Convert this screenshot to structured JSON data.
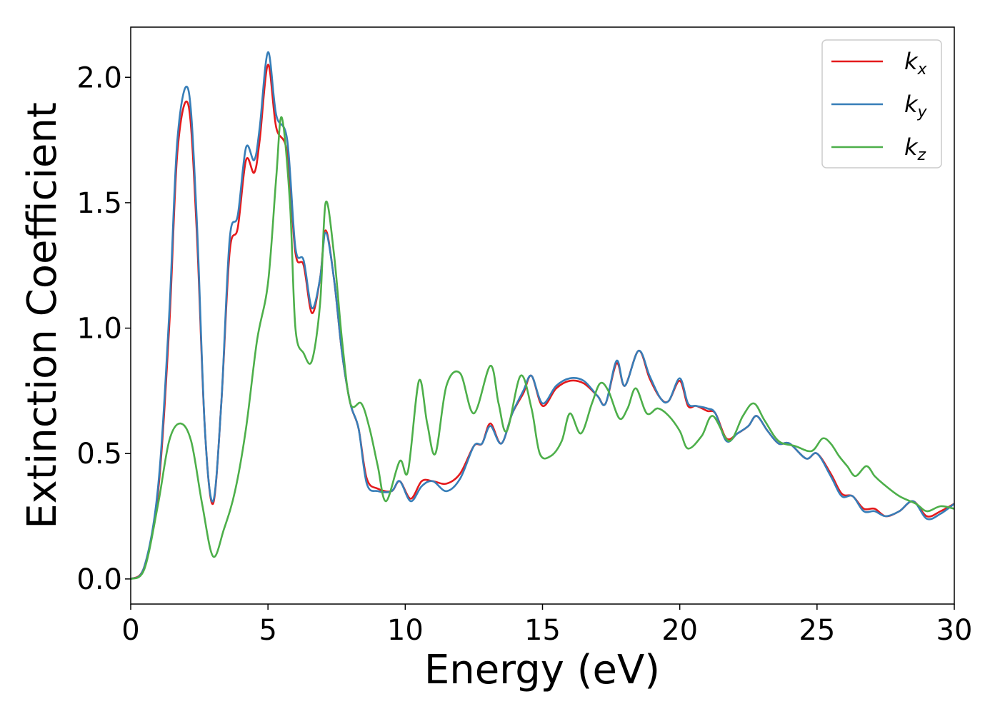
{
  "chart_data": {
    "type": "line",
    "xlabel": "Energy (eV)",
    "ylabel": "Extinction Coefficient",
    "xlim": [
      0,
      30
    ],
    "ylim": [
      -0.1,
      2.2
    ],
    "xticks": [
      0,
      5,
      10,
      15,
      20,
      25,
      30
    ],
    "xtick_labels": [
      "0",
      "5",
      "10",
      "15",
      "20",
      "25",
      "30"
    ],
    "yticks": [
      0.0,
      0.5,
      1.0,
      1.5,
      2.0
    ],
    "ytick_labels": [
      "0.0",
      "0.5",
      "1.0",
      "1.5",
      "2.0"
    ],
    "grid": false,
    "legend_position": "top-right",
    "series": [
      {
        "name": "k",
        "subscript": "x",
        "color": "#e41a1c",
        "points": [
          [
            0,
            0
          ],
          [
            0.5,
            0.05
          ],
          [
            1,
            0.35
          ],
          [
            1.4,
            1.0
          ],
          [
            1.7,
            1.7
          ],
          [
            2.1,
            1.89
          ],
          [
            2.4,
            1.4
          ],
          [
            2.7,
            0.6
          ],
          [
            3.0,
            0.3
          ],
          [
            3.3,
            0.7
          ],
          [
            3.6,
            1.3
          ],
          [
            3.9,
            1.4
          ],
          [
            4.2,
            1.67
          ],
          [
            4.5,
            1.62
          ],
          [
            4.7,
            1.75
          ],
          [
            5.0,
            2.05
          ],
          [
            5.3,
            1.8
          ],
          [
            5.7,
            1.7
          ],
          [
            6.0,
            1.3
          ],
          [
            6.3,
            1.25
          ],
          [
            6.6,
            1.06
          ],
          [
            6.9,
            1.2
          ],
          [
            7.1,
            1.39
          ],
          [
            7.4,
            1.2
          ],
          [
            7.7,
            0.9
          ],
          [
            8.0,
            0.7
          ],
          [
            8.3,
            0.6
          ],
          [
            8.6,
            0.4
          ],
          [
            9.0,
            0.36
          ],
          [
            9.5,
            0.35
          ],
          [
            9.8,
            0.39
          ],
          [
            10.2,
            0.32
          ],
          [
            10.6,
            0.39
          ],
          [
            11.0,
            0.39
          ],
          [
            11.5,
            0.38
          ],
          [
            12.0,
            0.42
          ],
          [
            12.5,
            0.53
          ],
          [
            12.8,
            0.54
          ],
          [
            13.1,
            0.62
          ],
          [
            13.5,
            0.54
          ],
          [
            13.9,
            0.66
          ],
          [
            14.3,
            0.74
          ],
          [
            14.6,
            0.81
          ],
          [
            15.0,
            0.69
          ],
          [
            15.5,
            0.76
          ],
          [
            16.0,
            0.79
          ],
          [
            16.5,
            0.78
          ],
          [
            17.0,
            0.73
          ],
          [
            17.3,
            0.7
          ],
          [
            17.7,
            0.86
          ],
          [
            18.0,
            0.77
          ],
          [
            18.5,
            0.91
          ],
          [
            18.9,
            0.8
          ],
          [
            19.3,
            0.72
          ],
          [
            19.6,
            0.71
          ],
          [
            20.0,
            0.79
          ],
          [
            20.3,
            0.69
          ],
          [
            20.6,
            0.69
          ],
          [
            21.0,
            0.67
          ],
          [
            21.3,
            0.66
          ],
          [
            21.7,
            0.56
          ],
          [
            22.1,
            0.58
          ],
          [
            22.5,
            0.61
          ],
          [
            22.8,
            0.65
          ],
          [
            23.2,
            0.59
          ],
          [
            23.6,
            0.54
          ],
          [
            24.0,
            0.54
          ],
          [
            24.6,
            0.48
          ],
          [
            25.0,
            0.5
          ],
          [
            25.5,
            0.42
          ],
          [
            25.9,
            0.34
          ],
          [
            26.3,
            0.33
          ],
          [
            26.7,
            0.28
          ],
          [
            27.1,
            0.28
          ],
          [
            27.5,
            0.25
          ],
          [
            28.0,
            0.27
          ],
          [
            28.5,
            0.31
          ],
          [
            29.0,
            0.25
          ],
          [
            29.5,
            0.27
          ],
          [
            30.0,
            0.3
          ]
        ]
      },
      {
        "name": "k",
        "subscript": "y",
        "color": "#377eb8",
        "points": [
          [
            0,
            0
          ],
          [
            0.5,
            0.05
          ],
          [
            1,
            0.37
          ],
          [
            1.4,
            1.05
          ],
          [
            1.7,
            1.75
          ],
          [
            2.1,
            1.95
          ],
          [
            2.4,
            1.45
          ],
          [
            2.7,
            0.6
          ],
          [
            3.0,
            0.31
          ],
          [
            3.3,
            0.7
          ],
          [
            3.6,
            1.35
          ],
          [
            3.9,
            1.45
          ],
          [
            4.2,
            1.72
          ],
          [
            4.5,
            1.67
          ],
          [
            4.7,
            1.8
          ],
          [
            5.0,
            2.1
          ],
          [
            5.3,
            1.85
          ],
          [
            5.7,
            1.75
          ],
          [
            6.0,
            1.32
          ],
          [
            6.3,
            1.27
          ],
          [
            6.6,
            1.08
          ],
          [
            6.9,
            1.2
          ],
          [
            7.1,
            1.38
          ],
          [
            7.4,
            1.2
          ],
          [
            7.7,
            0.9
          ],
          [
            8.0,
            0.7
          ],
          [
            8.3,
            0.6
          ],
          [
            8.6,
            0.38
          ],
          [
            9.0,
            0.35
          ],
          [
            9.5,
            0.35
          ],
          [
            9.8,
            0.39
          ],
          [
            10.2,
            0.31
          ],
          [
            10.6,
            0.37
          ],
          [
            11.0,
            0.39
          ],
          [
            11.5,
            0.35
          ],
          [
            12.0,
            0.4
          ],
          [
            12.5,
            0.53
          ],
          [
            12.8,
            0.54
          ],
          [
            13.1,
            0.61
          ],
          [
            13.5,
            0.54
          ],
          [
            13.9,
            0.66
          ],
          [
            14.3,
            0.75
          ],
          [
            14.6,
            0.81
          ],
          [
            15.0,
            0.7
          ],
          [
            15.5,
            0.77
          ],
          [
            16.0,
            0.8
          ],
          [
            16.5,
            0.79
          ],
          [
            17.0,
            0.73
          ],
          [
            17.3,
            0.7
          ],
          [
            17.7,
            0.87
          ],
          [
            18.0,
            0.77
          ],
          [
            18.5,
            0.91
          ],
          [
            18.9,
            0.81
          ],
          [
            19.3,
            0.72
          ],
          [
            19.6,
            0.71
          ],
          [
            20.0,
            0.8
          ],
          [
            20.3,
            0.7
          ],
          [
            20.6,
            0.69
          ],
          [
            21.0,
            0.68
          ],
          [
            21.3,
            0.66
          ],
          [
            21.7,
            0.55
          ],
          [
            22.1,
            0.58
          ],
          [
            22.5,
            0.61
          ],
          [
            22.8,
            0.65
          ],
          [
            23.2,
            0.59
          ],
          [
            23.6,
            0.54
          ],
          [
            24.0,
            0.54
          ],
          [
            24.6,
            0.48
          ],
          [
            25.0,
            0.5
          ],
          [
            25.5,
            0.41
          ],
          [
            25.9,
            0.33
          ],
          [
            26.3,
            0.33
          ],
          [
            26.7,
            0.27
          ],
          [
            27.1,
            0.27
          ],
          [
            27.5,
            0.25
          ],
          [
            28.0,
            0.27
          ],
          [
            28.5,
            0.31
          ],
          [
            29.0,
            0.24
          ],
          [
            29.5,
            0.26
          ],
          [
            30.0,
            0.3
          ]
        ]
      },
      {
        "name": "k",
        "subscript": "z",
        "color": "#4daf4a",
        "points": [
          [
            0,
            0
          ],
          [
            0.5,
            0.04
          ],
          [
            1.0,
            0.3
          ],
          [
            1.4,
            0.55
          ],
          [
            1.8,
            0.62
          ],
          [
            2.2,
            0.55
          ],
          [
            2.6,
            0.3
          ],
          [
            3.0,
            0.09
          ],
          [
            3.4,
            0.2
          ],
          [
            3.8,
            0.35
          ],
          [
            4.2,
            0.6
          ],
          [
            4.6,
            0.95
          ],
          [
            5.0,
            1.18
          ],
          [
            5.3,
            1.6
          ],
          [
            5.5,
            1.84
          ],
          [
            5.8,
            1.5
          ],
          [
            6.0,
            1.0
          ],
          [
            6.3,
            0.9
          ],
          [
            6.6,
            0.87
          ],
          [
            6.9,
            1.1
          ],
          [
            7.1,
            1.5
          ],
          [
            7.4,
            1.3
          ],
          [
            7.7,
            0.95
          ],
          [
            8.0,
            0.7
          ],
          [
            8.4,
            0.7
          ],
          [
            8.7,
            0.6
          ],
          [
            9.0,
            0.45
          ],
          [
            9.3,
            0.31
          ],
          [
            9.8,
            0.47
          ],
          [
            10.1,
            0.43
          ],
          [
            10.5,
            0.79
          ],
          [
            10.8,
            0.62
          ],
          [
            11.1,
            0.5
          ],
          [
            11.5,
            0.77
          ],
          [
            12.0,
            0.82
          ],
          [
            12.5,
            0.66
          ],
          [
            13.1,
            0.85
          ],
          [
            13.4,
            0.7
          ],
          [
            13.7,
            0.59
          ],
          [
            14.2,
            0.81
          ],
          [
            14.6,
            0.68
          ],
          [
            14.9,
            0.5
          ],
          [
            15.3,
            0.49
          ],
          [
            15.7,
            0.55
          ],
          [
            16.0,
            0.66
          ],
          [
            16.4,
            0.58
          ],
          [
            16.8,
            0.7
          ],
          [
            17.1,
            0.78
          ],
          [
            17.4,
            0.75
          ],
          [
            17.8,
            0.64
          ],
          [
            18.1,
            0.68
          ],
          [
            18.4,
            0.76
          ],
          [
            18.8,
            0.66
          ],
          [
            19.2,
            0.68
          ],
          [
            19.6,
            0.65
          ],
          [
            20.0,
            0.59
          ],
          [
            20.3,
            0.52
          ],
          [
            20.8,
            0.57
          ],
          [
            21.2,
            0.65
          ],
          [
            21.8,
            0.55
          ],
          [
            22.3,
            0.65
          ],
          [
            22.7,
            0.7
          ],
          [
            23.1,
            0.63
          ],
          [
            23.6,
            0.55
          ],
          [
            24.2,
            0.53
          ],
          [
            24.8,
            0.51
          ],
          [
            25.2,
            0.56
          ],
          [
            25.5,
            0.54
          ],
          [
            25.8,
            0.49
          ],
          [
            26.1,
            0.45
          ],
          [
            26.4,
            0.41
          ],
          [
            26.8,
            0.45
          ],
          [
            27.1,
            0.41
          ],
          [
            27.4,
            0.38
          ],
          [
            28.0,
            0.33
          ],
          [
            28.6,
            0.3
          ],
          [
            29.0,
            0.27
          ],
          [
            29.5,
            0.29
          ],
          [
            30.0,
            0.28
          ]
        ]
      }
    ]
  }
}
